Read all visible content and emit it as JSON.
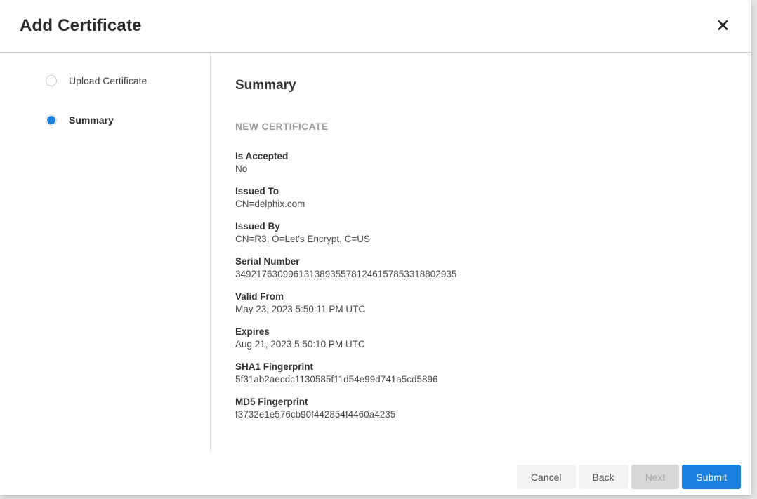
{
  "colors": {
    "accent": "#1b7fe0",
    "header_border": "#cccccc",
    "divider": "#e0e0e0",
    "disabled_button_bg": "#d8d8d8",
    "secondary_button_bg": "#f3f3f3"
  },
  "icons": {
    "close": "✕",
    "radio_unselected": "circle-outline",
    "radio_selected": "circle-filled-blue"
  },
  "modal": {
    "title": "Add Certificate"
  },
  "stepper": {
    "steps": [
      {
        "name": "upload-certificate",
        "label": "Upload Certificate",
        "state": "incomplete"
      },
      {
        "name": "summary",
        "label": "Summary",
        "state": "active"
      }
    ]
  },
  "content": {
    "heading": "Summary",
    "section_title": "NEW CERTIFICATE",
    "fields": [
      {
        "label": "Is Accepted",
        "value": "No"
      },
      {
        "label": "Issued To",
        "value": "CN=delphix.com"
      },
      {
        "label": "Issued By",
        "value": "CN=R3, O=Let's Encrypt, C=US"
      },
      {
        "label": "Serial Number",
        "value": "349217630996131389355781246157853318802935"
      },
      {
        "label": "Valid From",
        "value": "May 23, 2023 5:50:11 PM UTC"
      },
      {
        "label": "Expires",
        "value": "Aug 21, 2023 5:50:10 PM UTC"
      },
      {
        "label": "SHA1 Fingerprint",
        "value": "5f31ab2aecdc1130585f11d54e99d741a5cd5896"
      },
      {
        "label": "MD5 Fingerprint",
        "value": "f3732e1e576cb90f442854f4460a4235"
      }
    ]
  },
  "footer": {
    "buttons": [
      {
        "name": "cancel",
        "label": "Cancel",
        "style": "secondary",
        "disabled": false
      },
      {
        "name": "back",
        "label": "Back",
        "style": "secondary",
        "disabled": false
      },
      {
        "name": "next",
        "label": "Next",
        "style": "disabled",
        "disabled": true
      },
      {
        "name": "submit",
        "label": "Submit",
        "style": "primary",
        "disabled": false
      }
    ]
  }
}
